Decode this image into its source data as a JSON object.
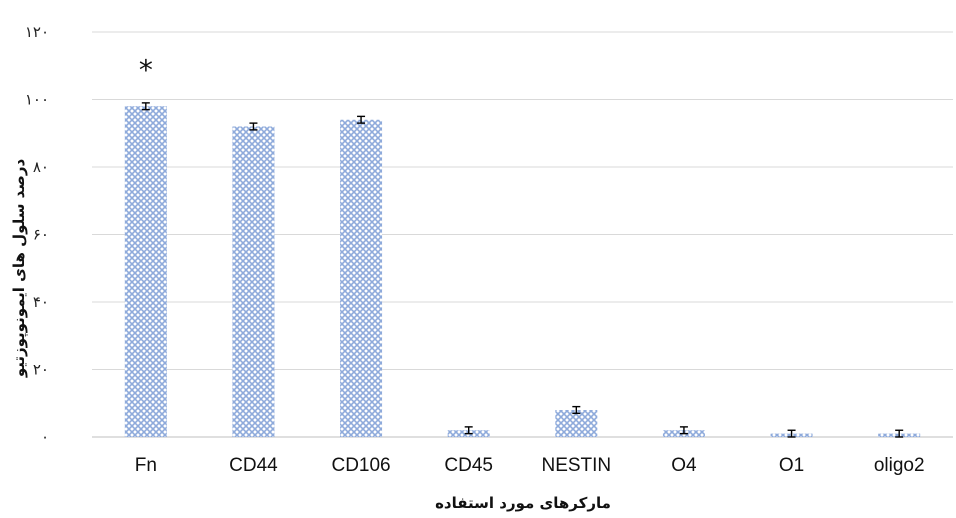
{
  "chart_data": {
    "type": "bar",
    "categories": [
      "Fn",
      "CD44",
      "CD106",
      "CD45",
      "NESTIN",
      "O4",
      "O1",
      "oligo2"
    ],
    "values": [
      98,
      92,
      94,
      2,
      8,
      2,
      1,
      1
    ],
    "errors": [
      1,
      1,
      1,
      1,
      1,
      1,
      1,
      1
    ],
    "ylim": [
      0,
      120
    ],
    "yticks": [
      0,
      20,
      40,
      60,
      80,
      100,
      120
    ],
    "ytick_labels": [
      "۰",
      "۲۰",
      "۴۰",
      "۶۰",
      "۸۰",
      "۱۰۰",
      "۱۲۰"
    ],
    "xlabel": "مارکرهای مورد استفاده",
    "ylabel": "درصد سلول های ایمونوپوزتیو",
    "annotations": [
      {
        "category": "Fn",
        "text": "*"
      }
    ],
    "grid": true,
    "bar_color": "#8eaadb",
    "bar_pattern": "crosshatch"
  }
}
